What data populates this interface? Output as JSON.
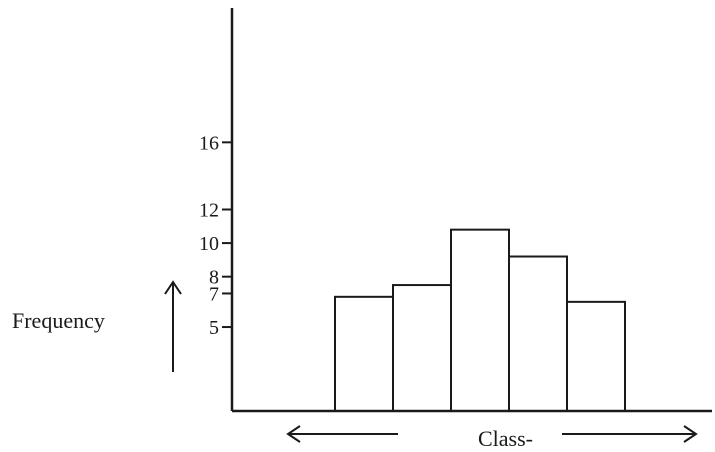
{
  "chart_data": {
    "type": "bar",
    "title": "",
    "xlabel": "Class-",
    "ylabel": "Frequency",
    "yticks": [
      "16",
      "12",
      "10",
      "8",
      "7",
      "5"
    ],
    "tick_values": [
      16,
      12,
      10,
      8,
      7,
      5
    ],
    "values": [
      6.8,
      7.5,
      10.8,
      9.2,
      6.5
    ],
    "ylim": [
      0,
      24
    ],
    "grid": false,
    "legend": "none",
    "bar_fill": "#ffffff",
    "line_color": "#1a1a1a"
  }
}
